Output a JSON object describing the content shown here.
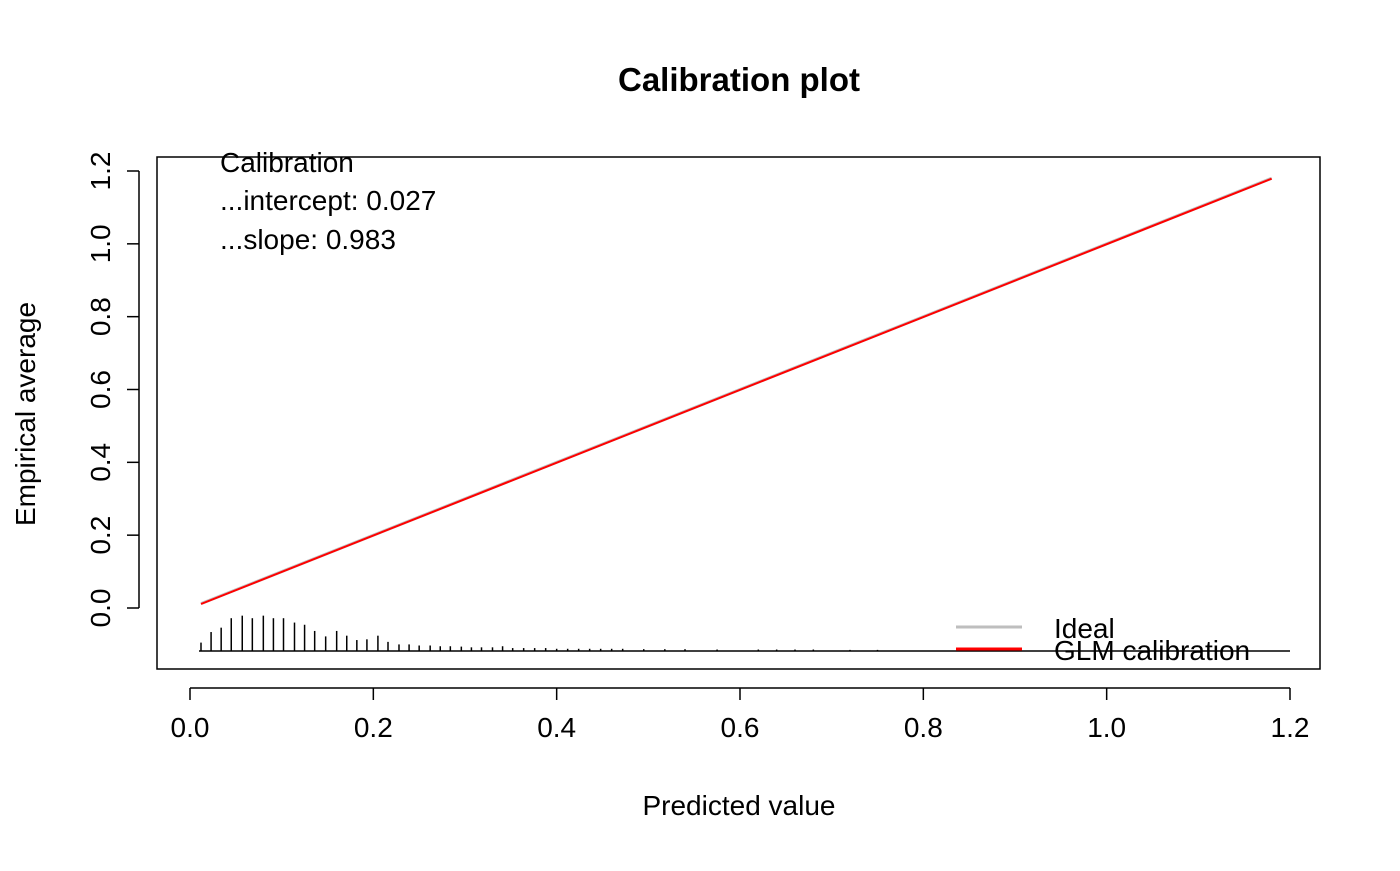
{
  "chart_data": {
    "type": "line",
    "title": "Calibration plot",
    "xlabel": "Predicted value",
    "ylabel": "Empirical average",
    "xlim": [
      0,
      1.2
    ],
    "ylim": [
      -0.12,
      1.22
    ],
    "x_ticks": [
      "0.0",
      "0.2",
      "0.4",
      "0.6",
      "0.8",
      "1.0",
      "1.2"
    ],
    "y_ticks": [
      "0.0",
      "0.2",
      "0.4",
      "0.6",
      "0.8",
      "1.0",
      "1.2"
    ],
    "grid": false,
    "series": [
      {
        "name": "Ideal",
        "color": "#BEBEBE",
        "x": [
          0.012,
          1.18
        ],
        "y": [
          0.012,
          1.18
        ]
      },
      {
        "name": "GLM calibration",
        "color": "#FF0000",
        "x": [
          0.012,
          1.18
        ],
        "y": [
          0.011,
          1.179
        ]
      }
    ],
    "annotation_lines": [
      "Calibration",
      "...intercept: 0.027",
      "...slope: 0.983"
    ],
    "legend": {
      "position": "bottom-right",
      "entries": [
        "Ideal",
        "GLM calibration"
      ]
    },
    "histogram": {
      "baseline": -0.118,
      "x": [
        0.012,
        0.023,
        0.034,
        0.045,
        0.057,
        0.068,
        0.08,
        0.091,
        0.102,
        0.114,
        0.125,
        0.136,
        0.148,
        0.16,
        0.171,
        0.182,
        0.193,
        0.205,
        0.216,
        0.228,
        0.239,
        0.25,
        0.262,
        0.273,
        0.284,
        0.296,
        0.307,
        0.318,
        0.33,
        0.341,
        0.352,
        0.364,
        0.376,
        0.388,
        0.4,
        0.412,
        0.424,
        0.436,
        0.448,
        0.46,
        0.472,
        0.495,
        0.518,
        0.54,
        0.575,
        0.62,
        0.64,
        0.66,
        0.68,
        0.72,
        0.75
      ],
      "height": [
        0.023,
        0.052,
        0.064,
        0.09,
        0.097,
        0.09,
        0.097,
        0.09,
        0.09,
        0.078,
        0.072,
        0.055,
        0.04,
        0.055,
        0.042,
        0.03,
        0.032,
        0.042,
        0.025,
        0.018,
        0.018,
        0.015,
        0.015,
        0.013,
        0.013,
        0.012,
        0.01,
        0.01,
        0.01,
        0.013,
        0.008,
        0.008,
        0.008,
        0.008,
        0.006,
        0.006,
        0.006,
        0.006,
        0.006,
        0.006,
        0.006,
        0.005,
        0.005,
        0.005,
        0.004,
        0.004,
        0.004,
        0.004,
        0.004,
        0.003,
        0.003
      ]
    }
  }
}
